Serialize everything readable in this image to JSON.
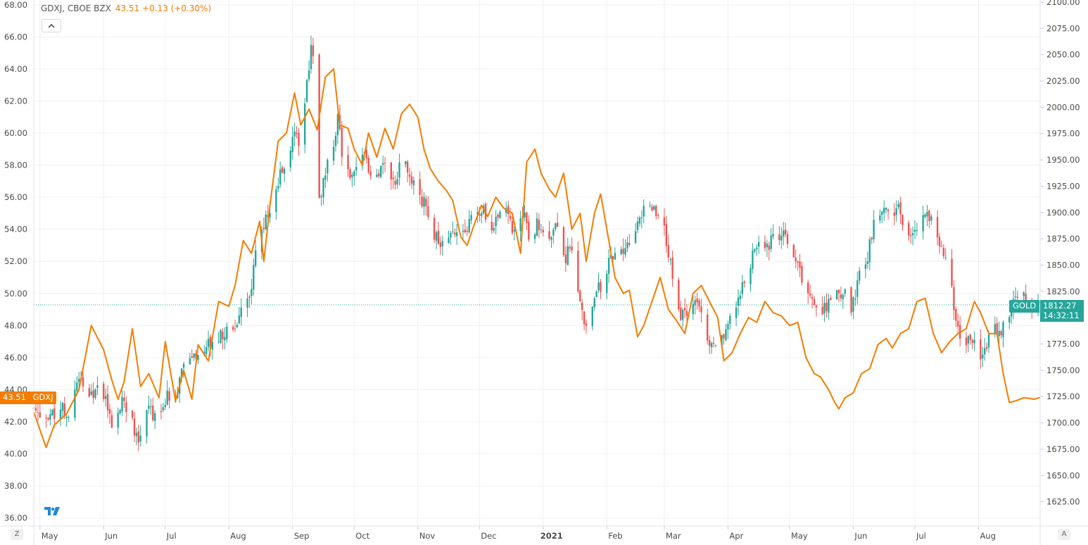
{
  "header": {
    "symbol_text": "GDXJ, CBOE BZX",
    "value_text": "43.51 +0.13 (+0.30%)"
  },
  "tags": {
    "gdxj_price": "43.51",
    "gdxj_name": "GDXJ",
    "gold_name": "GOLD",
    "gold_price": "1812.27",
    "gold_countdown": "14:32:11"
  },
  "buttons": {
    "scale_left": "Z",
    "scale_right": "A"
  },
  "icons": {
    "collapse": "chevron-up-icon",
    "logo": "tradingview-logo-icon"
  },
  "colors": {
    "up": "#26a69a",
    "down": "#ef5350",
    "gdxj_line": "#f57c00",
    "grid": "#eef0f3"
  },
  "chart_data": {
    "type": "line",
    "overlay_type": "candlestick",
    "x_ticks": [
      "May",
      "Jun",
      "Jul",
      "Aug",
      "Sep",
      "Oct",
      "Nov",
      "Dec",
      "2021",
      "Feb",
      "Mar",
      "Apr",
      "May",
      "Jun",
      "Jul",
      "Aug"
    ],
    "x_range": [
      "2020-04-28",
      "2021-08-31"
    ],
    "left_axis": {
      "series": "GDXJ",
      "ticks": [
        "36.00",
        "38.00",
        "40.00",
        "42.00",
        "44.00",
        "46.00",
        "48.00",
        "50.00",
        "52.00",
        "54.00",
        "56.00",
        "58.00",
        "60.00",
        "62.00",
        "64.00",
        "66.00",
        "68.00"
      ],
      "ylim": [
        35.5,
        68.3
      ]
    },
    "right_axis": {
      "series": "GOLD",
      "ticks": [
        "1625.00",
        "1650.00",
        "1675.00",
        "1700.00",
        "1725.00",
        "1750.00",
        "1775.00",
        "1800.00",
        "1825.00",
        "1850.00",
        "1875.00",
        "1900.00",
        "1925.00",
        "1950.00",
        "1975.00",
        "2000.00",
        "2025.00",
        "2050.00",
        "2075.00",
        "2100.00"
      ],
      "ylim": [
        1602,
        2102
      ]
    },
    "current_price_line": 1812.27,
    "series": [
      {
        "name": "GDXJ",
        "style": "line",
        "color": "#f57c00",
        "points": [
          [
            "2020-04-28",
            42.6
          ],
          [
            "2020-05-04",
            40.4
          ],
          [
            "2020-05-08",
            41.8
          ],
          [
            "2020-05-14",
            42.5
          ],
          [
            "2020-05-20",
            44.0
          ],
          [
            "2020-05-26",
            48.0
          ],
          [
            "2020-06-01",
            46.5
          ],
          [
            "2020-06-05",
            44.6
          ],
          [
            "2020-06-08",
            43.4
          ],
          [
            "2020-06-11",
            44.5
          ],
          [
            "2020-06-15",
            47.8
          ],
          [
            "2020-06-19",
            44.2
          ],
          [
            "2020-06-23",
            45.0
          ],
          [
            "2020-06-28",
            43.5
          ],
          [
            "2020-07-01",
            47.0
          ],
          [
            "2020-07-06",
            43.3
          ],
          [
            "2020-07-10",
            45.2
          ],
          [
            "2020-07-14",
            43.4
          ],
          [
            "2020-07-17",
            46.8
          ],
          [
            "2020-07-22",
            45.8
          ],
          [
            "2020-07-27",
            49.5
          ],
          [
            "2020-08-01",
            49.2
          ],
          [
            "2020-08-04",
            50.5
          ],
          [
            "2020-08-08",
            53.3
          ],
          [
            "2020-08-12",
            52.5
          ],
          [
            "2020-08-16",
            54.5
          ],
          [
            "2020-08-18",
            52.0
          ],
          [
            "2020-08-21",
            55.5
          ],
          [
            "2020-08-25",
            59.5
          ],
          [
            "2020-08-29",
            60.0
          ],
          [
            "2020-09-02",
            62.5
          ],
          [
            "2020-09-05",
            60.5
          ],
          [
            "2020-09-09",
            61.5
          ],
          [
            "2020-09-13",
            60.2
          ],
          [
            "2020-09-17",
            63.5
          ],
          [
            "2020-09-21",
            64.0
          ],
          [
            "2020-09-24",
            60.5
          ],
          [
            "2020-09-28",
            60.3
          ],
          [
            "2020-10-01",
            59.0
          ],
          [
            "2020-10-05",
            58.0
          ],
          [
            "2020-10-08",
            60.0
          ],
          [
            "2020-10-12",
            58.5
          ],
          [
            "2020-10-16",
            60.3
          ],
          [
            "2020-10-20",
            59.0
          ],
          [
            "2020-10-24",
            61.2
          ],
          [
            "2020-10-28",
            61.8
          ],
          [
            "2020-11-01",
            61.0
          ],
          [
            "2020-11-04",
            59.0
          ],
          [
            "2020-11-07",
            57.8
          ],
          [
            "2020-11-11",
            57.0
          ],
          [
            "2020-11-15",
            56.4
          ],
          [
            "2020-11-18",
            55.8
          ],
          [
            "2020-11-22",
            53.5
          ],
          [
            "2020-11-25",
            53.0
          ],
          [
            "2020-11-29",
            54.5
          ],
          [
            "2020-12-02",
            55.5
          ],
          [
            "2020-12-05",
            54.8
          ],
          [
            "2020-12-09",
            56.0
          ],
          [
            "2020-12-13",
            55.3
          ],
          [
            "2020-12-17",
            55.0
          ],
          [
            "2020-12-21",
            52.5
          ],
          [
            "2020-12-24",
            58.2
          ],
          [
            "2020-12-28",
            59.0
          ],
          [
            "2020-12-31",
            57.5
          ],
          [
            "2021-01-04",
            56.5
          ],
          [
            "2021-01-07",
            56.0
          ],
          [
            "2021-01-11",
            57.5
          ],
          [
            "2021-01-15",
            54.0
          ],
          [
            "2021-01-19",
            55.0
          ],
          [
            "2021-01-22",
            52.0
          ],
          [
            "2021-01-26",
            55.0
          ],
          [
            "2021-01-29",
            56.2
          ],
          [
            "2021-02-02",
            53.3
          ],
          [
            "2021-02-05",
            51.0
          ],
          [
            "2021-02-09",
            50.0
          ],
          [
            "2021-02-12",
            50.2
          ],
          [
            "2021-02-16",
            47.3
          ],
          [
            "2021-02-19",
            48.0
          ],
          [
            "2021-02-23",
            49.5
          ],
          [
            "2021-02-27",
            51.0
          ],
          [
            "2021-03-03",
            49.0
          ],
          [
            "2021-03-07",
            48.3
          ],
          [
            "2021-03-11",
            47.5
          ],
          [
            "2021-03-15",
            50.0
          ],
          [
            "2021-03-19",
            50.5
          ],
          [
            "2021-03-23",
            49.5
          ],
          [
            "2021-03-27",
            48.5
          ],
          [
            "2021-03-30",
            45.8
          ],
          [
            "2021-04-03",
            46.3
          ],
          [
            "2021-04-07",
            47.5
          ],
          [
            "2021-04-11",
            48.5
          ],
          [
            "2021-04-15",
            48.2
          ],
          [
            "2021-04-19",
            49.5
          ],
          [
            "2021-04-23",
            48.8
          ],
          [
            "2021-04-27",
            48.6
          ],
          [
            "2021-05-01",
            48.0
          ],
          [
            "2021-05-05",
            48.2
          ],
          [
            "2021-05-09",
            46.0
          ],
          [
            "2021-05-13",
            45.0
          ],
          [
            "2021-05-16",
            44.8
          ],
          [
            "2021-05-20",
            44.0
          ],
          [
            "2021-05-23",
            43.2
          ],
          [
            "2021-05-25",
            42.8
          ],
          [
            "2021-05-28",
            43.5
          ],
          [
            "2021-06-01",
            43.8
          ],
          [
            "2021-06-05",
            45.0
          ],
          [
            "2021-06-09",
            45.3
          ],
          [
            "2021-06-13",
            46.8
          ],
          [
            "2021-06-17",
            47.2
          ],
          [
            "2021-06-20",
            46.6
          ],
          [
            "2021-06-24",
            47.5
          ],
          [
            "2021-06-28",
            47.8
          ],
          [
            "2021-07-02",
            49.5
          ],
          [
            "2021-07-06",
            49.7
          ],
          [
            "2021-07-10",
            47.5
          ],
          [
            "2021-07-14",
            46.3
          ],
          [
            "2021-07-18",
            47.0
          ],
          [
            "2021-07-22",
            47.5
          ],
          [
            "2021-07-26",
            47.8
          ],
          [
            "2021-07-30",
            49.5
          ],
          [
            "2021-08-02",
            48.8
          ],
          [
            "2021-08-06",
            47.5
          ],
          [
            "2021-08-10",
            47.5
          ],
          [
            "2021-08-13",
            45.0
          ],
          [
            "2021-08-16",
            43.2
          ],
          [
            "2021-08-19",
            43.3
          ],
          [
            "2021-08-23",
            43.5
          ],
          [
            "2021-08-26",
            43.45
          ],
          [
            "2021-08-28",
            43.4
          ],
          [
            "2021-08-31",
            43.51
          ]
        ]
      },
      {
        "name": "GOLD",
        "style": "candlestick",
        "up_color": "#26a69a",
        "down_color": "#ef5350",
        "path": [
          [
            "2020-04-28",
            1716
          ],
          [
            "2020-05-04",
            1700
          ],
          [
            "2020-05-10",
            1715
          ],
          [
            "2020-05-16",
            1708
          ],
          [
            "2020-05-20",
            1742
          ],
          [
            "2020-05-26",
            1728
          ],
          [
            "2020-05-31",
            1735
          ],
          [
            "2020-06-05",
            1700
          ],
          [
            "2020-06-10",
            1722
          ],
          [
            "2020-06-14",
            1708
          ],
          [
            "2020-06-18",
            1680
          ],
          [
            "2020-06-22",
            1712
          ],
          [
            "2020-06-27",
            1705
          ],
          [
            "2020-07-02",
            1725
          ],
          [
            "2020-07-06",
            1728
          ],
          [
            "2020-07-10",
            1760
          ],
          [
            "2020-07-15",
            1762
          ],
          [
            "2020-07-20",
            1770
          ],
          [
            "2020-07-26",
            1780
          ],
          [
            "2020-08-01",
            1790
          ],
          [
            "2020-08-06",
            1800
          ],
          [
            "2020-08-11",
            1820
          ],
          [
            "2020-08-14",
            1860
          ],
          [
            "2020-08-18",
            1885
          ],
          [
            "2020-08-21",
            1905
          ],
          [
            "2020-08-25",
            1930
          ],
          [
            "2020-08-29",
            1950
          ],
          [
            "2020-09-02",
            1980
          ],
          [
            "2020-09-05",
            1965
          ],
          [
            "2020-09-08",
            2020
          ],
          [
            "2020-09-10",
            2055
          ],
          [
            "2020-09-12",
            2030
          ],
          [
            "2020-09-14",
            1912
          ],
          [
            "2020-09-17",
            1940
          ],
          [
            "2020-09-20",
            1955
          ],
          [
            "2020-09-23",
            1990
          ],
          [
            "2020-09-26",
            1940
          ],
          [
            "2020-09-30",
            1930
          ],
          [
            "2020-10-03",
            1950
          ],
          [
            "2020-10-06",
            1960
          ],
          [
            "2020-10-09",
            1930
          ],
          [
            "2020-10-13",
            1940
          ],
          [
            "2020-10-17",
            1950
          ],
          [
            "2020-10-20",
            1925
          ],
          [
            "2020-10-24",
            1950
          ],
          [
            "2020-10-28",
            1935
          ],
          [
            "2020-11-01",
            1920
          ],
          [
            "2020-11-05",
            1905
          ],
          [
            "2020-11-09",
            1880
          ],
          [
            "2020-11-13",
            1868
          ],
          [
            "2020-11-17",
            1885
          ],
          [
            "2020-11-21",
            1880
          ],
          [
            "2020-11-25",
            1885
          ],
          [
            "2020-11-28",
            1900
          ],
          [
            "2020-12-02",
            1905
          ],
          [
            "2020-12-06",
            1888
          ],
          [
            "2020-12-10",
            1895
          ],
          [
            "2020-12-14",
            1910
          ],
          [
            "2020-12-18",
            1880
          ],
          [
            "2020-12-22",
            1900
          ],
          [
            "2020-12-26",
            1872
          ],
          [
            "2020-12-29",
            1890
          ],
          [
            "2021-01-02",
            1880
          ],
          [
            "2021-01-05",
            1880
          ],
          [
            "2021-01-08",
            1890
          ],
          [
            "2021-01-12",
            1858
          ],
          [
            "2021-01-16",
            1875
          ],
          [
            "2021-01-19",
            1810
          ],
          [
            "2021-01-22",
            1790
          ],
          [
            "2021-01-26",
            1820
          ],
          [
            "2021-01-30",
            1835
          ],
          [
            "2021-02-03",
            1855
          ],
          [
            "2021-02-07",
            1860
          ],
          [
            "2021-02-11",
            1868
          ],
          [
            "2021-02-14",
            1880
          ],
          [
            "2021-02-18",
            1898
          ],
          [
            "2021-02-22",
            1905
          ],
          [
            "2021-02-26",
            1902
          ],
          [
            "2021-03-02",
            1875
          ],
          [
            "2021-03-06",
            1830
          ],
          [
            "2021-03-09",
            1800
          ],
          [
            "2021-03-13",
            1810
          ],
          [
            "2021-03-17",
            1812
          ],
          [
            "2021-03-21",
            1785
          ],
          [
            "2021-03-25",
            1775
          ],
          [
            "2021-03-28",
            1780
          ],
          [
            "2021-04-01",
            1788
          ],
          [
            "2021-04-04",
            1810
          ],
          [
            "2021-04-08",
            1830
          ],
          [
            "2021-04-11",
            1850
          ],
          [
            "2021-04-14",
            1862
          ],
          [
            "2021-04-17",
            1870
          ],
          [
            "2021-04-21",
            1870
          ],
          [
            "2021-04-25",
            1880
          ],
          [
            "2021-04-28",
            1878
          ],
          [
            "2021-05-02",
            1862
          ],
          [
            "2021-05-06",
            1842
          ],
          [
            "2021-05-09",
            1828
          ],
          [
            "2021-05-12",
            1818
          ],
          [
            "2021-05-16",
            1808
          ],
          [
            "2021-05-19",
            1812
          ],
          [
            "2021-05-23",
            1820
          ],
          [
            "2021-05-27",
            1825
          ],
          [
            "2021-05-31",
            1810
          ],
          [
            "2021-06-04",
            1840
          ],
          [
            "2021-06-08",
            1860
          ],
          [
            "2021-06-11",
            1890
          ],
          [
            "2021-06-15",
            1906
          ],
          [
            "2021-06-19",
            1895
          ],
          [
            "2021-06-23",
            1905
          ],
          [
            "2021-06-27",
            1880
          ],
          [
            "2021-06-30",
            1880
          ],
          [
            "2021-07-03",
            1895
          ],
          [
            "2021-07-06",
            1895
          ],
          [
            "2021-07-09",
            1900
          ],
          [
            "2021-07-13",
            1870
          ],
          [
            "2021-07-16",
            1860
          ],
          [
            "2021-07-20",
            1812
          ],
          [
            "2021-07-24",
            1775
          ],
          [
            "2021-07-28",
            1780
          ],
          [
            "2021-07-31",
            1770
          ],
          [
            "2021-08-03",
            1762
          ],
          [
            "2021-08-06",
            1780
          ],
          [
            "2021-08-09",
            1788
          ],
          [
            "2021-08-12",
            1790
          ],
          [
            "2021-08-15",
            1800
          ],
          [
            "2021-08-18",
            1812
          ],
          [
            "2021-08-21",
            1822
          ],
          [
            "2021-08-24",
            1815
          ],
          [
            "2021-08-27",
            1810
          ],
          [
            "2021-08-31",
            1812.27
          ]
        ]
      }
    ]
  }
}
